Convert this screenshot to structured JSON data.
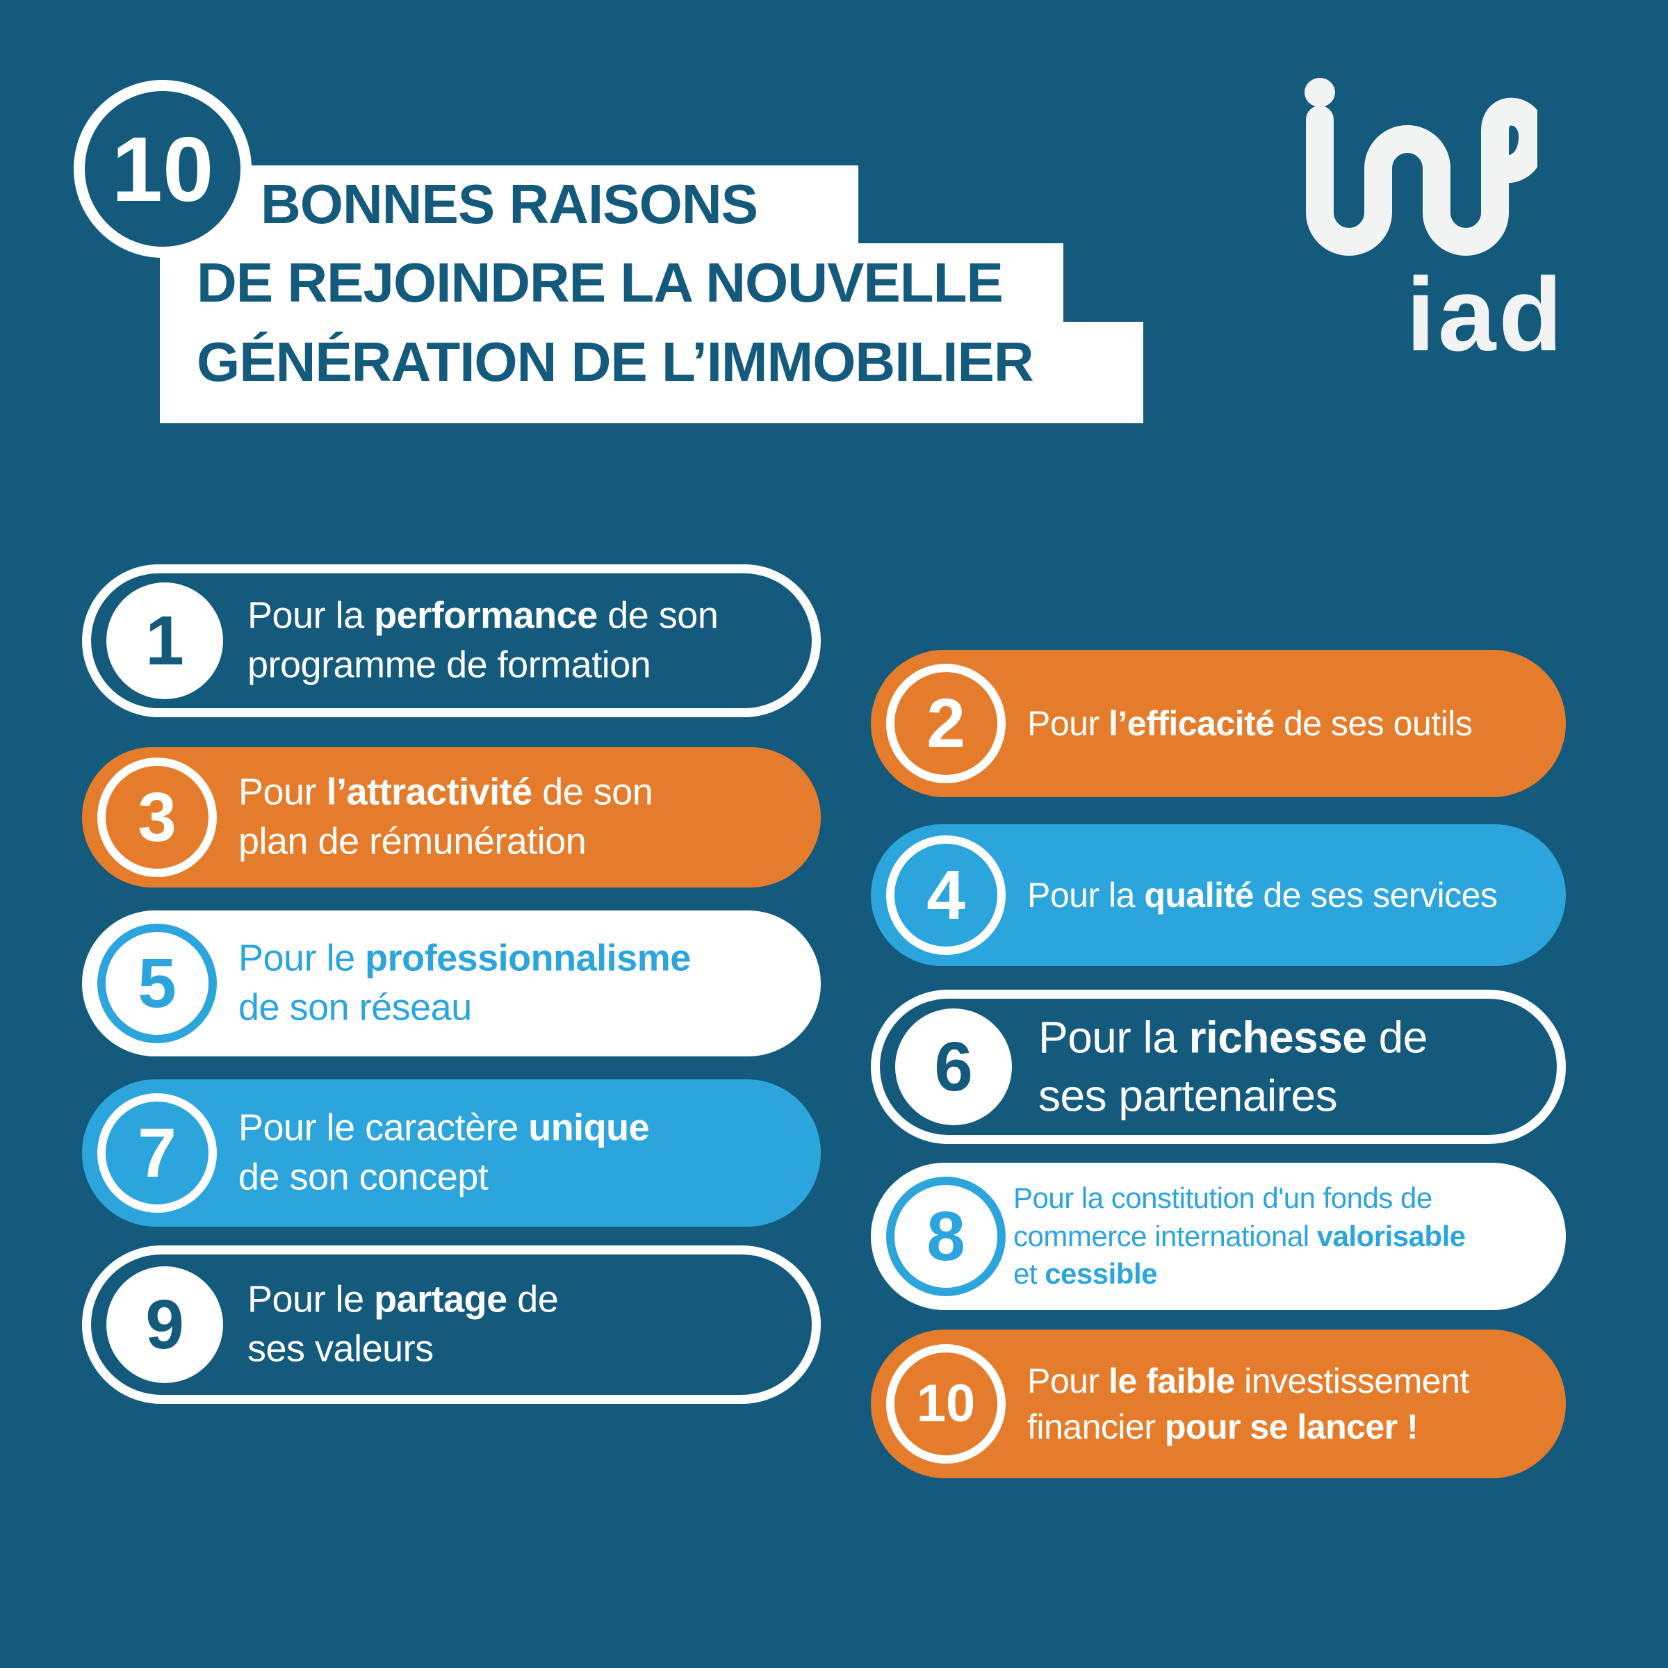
{
  "colors": {
    "background": "#135A7C",
    "orange": "#E57C2B",
    "light_blue": "#2BA5DC",
    "white": "#FFFFFF",
    "logo_offwhite": "#F2F3F3"
  },
  "header": {
    "count_badge": "10",
    "title_lines": [
      {
        "segments": [
          {
            "text": "BONNES RAISONS",
            "bold": true
          }
        ]
      },
      {
        "segments": [
          {
            "text": "DE REJOINDRE LA ",
            "bold": false
          },
          {
            "text": "NOUVELLE",
            "bold": true
          }
        ]
      },
      {
        "segments": [
          {
            "text": "GÉNÉRATION DE L’IMMOBILIER",
            "bold": true
          }
        ]
      }
    ]
  },
  "logo": {
    "wordmark": "iad",
    "mark": "iad-loop-monogram"
  },
  "reasons": [
    {
      "number": "1",
      "variant": "outline",
      "column": "left",
      "segments": [
        {
          "text": "Pour la ",
          "bold": false
        },
        {
          "text": "performance",
          "bold": true
        },
        {
          "text": " de son\nprogramme de formation",
          "bold": false
        }
      ]
    },
    {
      "number": "2",
      "variant": "orange",
      "column": "right",
      "segments": [
        {
          "text": "Pour ",
          "bold": false
        },
        {
          "text": "l’efficacité",
          "bold": true
        },
        {
          "text": " de ses outils",
          "bold": false
        }
      ]
    },
    {
      "number": "3",
      "variant": "orange",
      "column": "left",
      "segments": [
        {
          "text": "Pour ",
          "bold": false
        },
        {
          "text": "l’attractivité",
          "bold": true
        },
        {
          "text": " de son\nplan de rémunération",
          "bold": false
        }
      ]
    },
    {
      "number": "4",
      "variant": "lightblue",
      "column": "right",
      "segments": [
        {
          "text": "Pour la ",
          "bold": false
        },
        {
          "text": "qualité",
          "bold": true
        },
        {
          "text": " de ses services",
          "bold": false
        }
      ]
    },
    {
      "number": "5",
      "variant": "white",
      "column": "left",
      "segments": [
        {
          "text": "Pour le ",
          "bold": false
        },
        {
          "text": "professionnalisme",
          "bold": true
        },
        {
          "text": "\nde son réseau",
          "bold": false
        }
      ]
    },
    {
      "number": "6",
      "variant": "outline",
      "column": "right",
      "segments": [
        {
          "text": "Pour la ",
          "bold": false
        },
        {
          "text": "richesse",
          "bold": true
        },
        {
          "text": " de\nses partenaires",
          "bold": false
        }
      ]
    },
    {
      "number": "7",
      "variant": "lightblue",
      "column": "left",
      "segments": [
        {
          "text": "Pour le caractère ",
          "bold": false
        },
        {
          "text": "unique",
          "bold": true
        },
        {
          "text": "\nde son concept",
          "bold": false
        }
      ]
    },
    {
      "number": "8",
      "variant": "white",
      "column": "right",
      "segments": [
        {
          "text": "Pour la constitution d'un fonds de\ncommerce international ",
          "bold": false
        },
        {
          "text": "valorisable",
          "bold": true
        },
        {
          "text": "\net ",
          "bold": false
        },
        {
          "text": "cessible",
          "bold": true
        }
      ]
    },
    {
      "number": "9",
      "variant": "outline",
      "column": "left",
      "segments": [
        {
          "text": "Pour le ",
          "bold": false
        },
        {
          "text": "partage",
          "bold": true
        },
        {
          "text": " de\nses valeurs",
          "bold": false
        }
      ]
    },
    {
      "number": "10",
      "variant": "orange",
      "column": "right",
      "segments": [
        {
          "text": "Pour ",
          "bold": false
        },
        {
          "text": "le faible",
          "bold": true
        },
        {
          "text": " investissement\nfinancier ",
          "bold": false
        },
        {
          "text": "pour se lancer !",
          "bold": true
        }
      ]
    }
  ]
}
